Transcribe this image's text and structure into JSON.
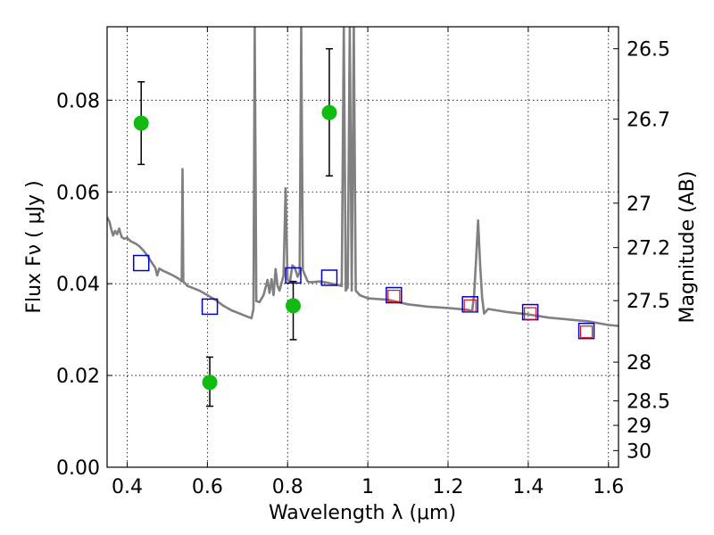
{
  "chart_data": {
    "type": "scatter",
    "xlabel": "Wavelength  λ (μm)",
    "ylabel": "Flux  Fν  ( μJy )",
    "y2label": "Magnitude (AB)",
    "xlim": [
      0.35,
      1.625
    ],
    "ylim": [
      0.0,
      0.096
    ],
    "grid": true,
    "x_ticks": [
      {
        "value": 0.4,
        "label": "0.4"
      },
      {
        "value": 0.6,
        "label": "0.6"
      },
      {
        "value": 0.8,
        "label": "0.8"
      },
      {
        "value": 1.0,
        "label": "1"
      },
      {
        "value": 1.2,
        "label": "1.2"
      },
      {
        "value": 1.4,
        "label": "1.4"
      },
      {
        "value": 1.6,
        "label": "1.6"
      }
    ],
    "y_ticks": [
      {
        "value": 0.0,
        "label": "0.00"
      },
      {
        "value": 0.02,
        "label": "0.02"
      },
      {
        "value": 0.04,
        "label": "0.04"
      },
      {
        "value": 0.06,
        "label": "0.06"
      },
      {
        "value": 0.08,
        "label": "0.08"
      }
    ],
    "mag_ticks": [
      {
        "value": 26.5,
        "label": "26.5"
      },
      {
        "value": 26.7,
        "label": "26.7"
      },
      {
        "value": 27.0,
        "label": "27"
      },
      {
        "value": 27.2,
        "label": "27.2"
      },
      {
        "value": 27.5,
        "label": "27.5"
      },
      {
        "value": 28.0,
        "label": "28"
      },
      {
        "value": 28.5,
        "label": "28.5"
      },
      {
        "value": 29.0,
        "label": "29"
      },
      {
        "value": 30.0,
        "label": "30"
      }
    ],
    "series": [
      {
        "kind": "spectrum",
        "color": "#808080",
        "points": [
          [
            0.35,
            0.0545
          ],
          [
            0.356,
            0.0535
          ],
          [
            0.36,
            0.052
          ],
          [
            0.365,
            0.0505
          ],
          [
            0.37,
            0.0515
          ],
          [
            0.375,
            0.0508
          ],
          [
            0.38,
            0.052
          ],
          [
            0.386,
            0.0502
          ],
          [
            0.392,
            0.0498
          ],
          [
            0.4,
            0.05
          ],
          [
            0.408,
            0.0493
          ],
          [
            0.415,
            0.049
          ],
          [
            0.422,
            0.0487
          ],
          [
            0.43,
            0.0482
          ],
          [
            0.44,
            0.0473
          ],
          [
            0.45,
            0.0462
          ],
          [
            0.46,
            0.0448
          ],
          [
            0.47,
            0.0435
          ],
          [
            0.475,
            0.0418
          ],
          [
            0.48,
            0.0433
          ],
          [
            0.49,
            0.0428
          ],
          [
            0.5,
            0.0424
          ],
          [
            0.51,
            0.042
          ],
          [
            0.52,
            0.0415
          ],
          [
            0.53,
            0.041
          ],
          [
            0.536,
            0.0405
          ],
          [
            0.538,
            0.065
          ],
          [
            0.54,
            0.0405
          ],
          [
            0.55,
            0.0395
          ],
          [
            0.56,
            0.0392
          ],
          [
            0.58,
            0.0385
          ],
          [
            0.6,
            0.0375
          ],
          [
            0.62,
            0.0365
          ],
          [
            0.64,
            0.0352
          ],
          [
            0.66,
            0.0342
          ],
          [
            0.68,
            0.0335
          ],
          [
            0.7,
            0.0328
          ],
          [
            0.71,
            0.0325
          ],
          [
            0.715,
            0.0345
          ],
          [
            0.718,
            0.096
          ],
          [
            0.722,
            0.0362
          ],
          [
            0.73,
            0.036
          ],
          [
            0.74,
            0.0375
          ],
          [
            0.75,
            0.0408
          ],
          [
            0.755,
            0.038
          ],
          [
            0.76,
            0.041
          ],
          [
            0.765,
            0.0375
          ],
          [
            0.77,
            0.0432
          ],
          [
            0.775,
            0.0395
          ],
          [
            0.78,
            0.0385
          ],
          [
            0.79,
            0.0418
          ],
          [
            0.795,
            0.0608
          ],
          [
            0.8,
            0.0408
          ],
          [
            0.806,
            0.0404
          ],
          [
            0.812,
            0.044
          ],
          [
            0.818,
            0.0435
          ],
          [
            0.825,
            0.0415
          ],
          [
            0.83,
            0.0425
          ],
          [
            0.834,
            0.096
          ],
          [
            0.838,
            0.043
          ],
          [
            0.85,
            0.0405
          ],
          [
            0.86,
            0.0403
          ],
          [
            0.88,
            0.0405
          ],
          [
            0.9,
            0.0402
          ],
          [
            0.92,
            0.0398
          ],
          [
            0.935,
            0.0395
          ],
          [
            0.94,
            0.096
          ],
          [
            0.945,
            0.0385
          ],
          [
            0.95,
            0.0392
          ],
          [
            0.955,
            0.096
          ],
          [
            0.96,
            0.0385
          ],
          [
            0.965,
            0.096
          ],
          [
            0.97,
            0.0385
          ],
          [
            0.98,
            0.0375
          ],
          [
            1.0,
            0.0368
          ],
          [
            1.05,
            0.0365
          ],
          [
            1.1,
            0.0355
          ],
          [
            1.15,
            0.035
          ],
          [
            1.2,
            0.0347
          ],
          [
            1.25,
            0.0343
          ],
          [
            1.26,
            0.034
          ],
          [
            1.265,
            0.0375
          ],
          [
            1.27,
            0.0455
          ],
          [
            1.275,
            0.0538
          ],
          [
            1.28,
            0.044
          ],
          [
            1.285,
            0.037
          ],
          [
            1.29,
            0.0335
          ],
          [
            1.3,
            0.0345
          ],
          [
            1.35,
            0.0338
          ],
          [
            1.4,
            0.0333
          ],
          [
            1.45,
            0.0326
          ],
          [
            1.5,
            0.0322
          ],
          [
            1.55,
            0.0318
          ],
          [
            1.6,
            0.031
          ],
          [
            1.625,
            0.0308
          ]
        ]
      },
      {
        "kind": "observed",
        "color": "#11bb11",
        "points": [
          {
            "x": 0.435,
            "y": 0.075,
            "err": [
              0.066,
              0.084
            ]
          },
          {
            "x": 0.606,
            "y": 0.0185,
            "err": [
              0.0133,
              0.024
            ]
          },
          {
            "x": 0.814,
            "y": 0.0352,
            "err": [
              0.0278,
              0.0405
            ]
          },
          {
            "x": 0.904,
            "y": 0.0773,
            "err": [
              0.0635,
              0.0912
            ]
          }
        ]
      },
      {
        "kind": "model-blue",
        "color": "#0000cc",
        "points": [
          {
            "x": 0.435,
            "y": 0.0445
          },
          {
            "x": 0.606,
            "y": 0.035
          },
          {
            "x": 0.814,
            "y": 0.0418
          },
          {
            "x": 0.904,
            "y": 0.0413
          },
          {
            "x": 1.065,
            "y": 0.0375
          },
          {
            "x": 1.255,
            "y": 0.0355
          },
          {
            "x": 1.405,
            "y": 0.0338
          },
          {
            "x": 1.545,
            "y": 0.0297
          }
        ]
      },
      {
        "kind": "model-red",
        "color": "#dd1111",
        "points": [
          {
            "x": 1.065,
            "y": 0.0373
          },
          {
            "x": 1.255,
            "y": 0.0352
          },
          {
            "x": 1.405,
            "y": 0.0335
          },
          {
            "x": 1.545,
            "y": 0.0295
          }
        ]
      }
    ]
  }
}
